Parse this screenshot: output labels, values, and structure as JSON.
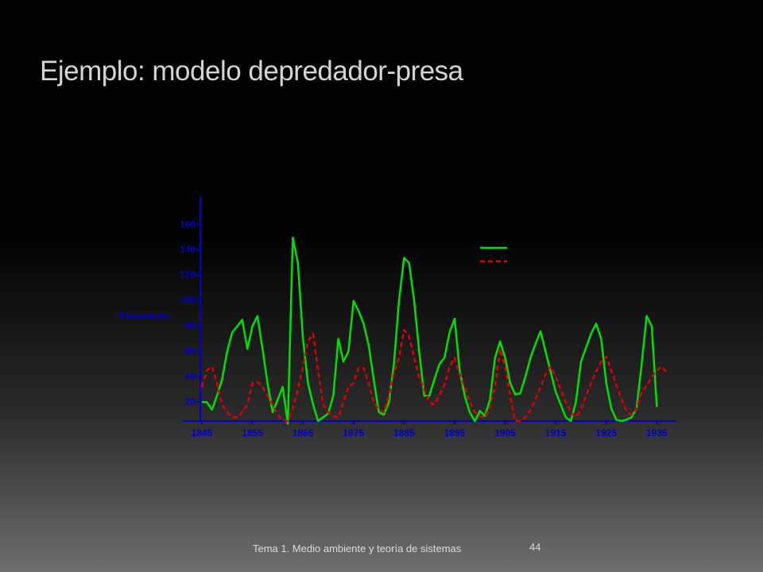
{
  "slide": {
    "title": "Ejemplo: modelo depredador-presa",
    "footer": "Tema 1. Medio ambiente y teoría de sistemas",
    "page_number": "44"
  },
  "chart_data": {
    "type": "line",
    "ylabel": "Thousands",
    "x": [
      1845,
      1846,
      1847,
      1848,
      1849,
      1850,
      1851,
      1852,
      1853,
      1854,
      1855,
      1856,
      1857,
      1858,
      1859,
      1860,
      1861,
      1862,
      1863,
      1864,
      1865,
      1866,
      1867,
      1868,
      1869,
      1870,
      1871,
      1872,
      1873,
      1874,
      1875,
      1876,
      1877,
      1878,
      1879,
      1880,
      1881,
      1882,
      1883,
      1884,
      1885,
      1886,
      1887,
      1888,
      1889,
      1890,
      1891,
      1892,
      1893,
      1894,
      1895,
      1896,
      1897,
      1898,
      1899,
      1900,
      1901,
      1902,
      1903,
      1904,
      1905,
      1906,
      1907,
      1908,
      1909,
      1910,
      1911,
      1912,
      1913,
      1914,
      1915,
      1916,
      1917,
      1918,
      1919,
      1920,
      1921,
      1922,
      1923,
      1924,
      1925,
      1926,
      1927,
      1928,
      1929,
      1930,
      1931,
      1932,
      1933,
      1934,
      1935,
      1936,
      1937
    ],
    "series": [
      {
        "color": "#00e000",
        "dashed": false,
        "values": [
          20,
          20,
          14,
          25,
          38,
          60,
          75,
          80,
          85,
          62,
          80,
          88,
          62,
          35,
          12,
          22,
          32,
          3,
          150,
          130,
          70,
          35,
          18,
          5,
          8,
          11,
          25,
          70,
          52,
          60,
          100,
          92,
          82,
          65,
          38,
          12,
          10,
          20,
          50,
          100,
          134,
          130,
          100,
          60,
          25,
          25,
          38,
          50,
          55,
          75,
          86,
          45,
          25,
          12,
          5,
          13,
          9,
          22,
          55,
          68,
          55,
          35,
          26,
          27,
          40,
          55,
          66,
          76,
          60,
          44,
          28,
          18,
          8,
          5,
          20,
          52,
          63,
          74,
          82,
          70,
          35,
          15,
          6,
          5,
          6,
          8,
          15,
          50,
          88,
          80,
          16,
          null,
          null
        ]
      },
      {
        "color": "#e00000",
        "dashed": true,
        "values": [
          32,
          45,
          48,
          35,
          18,
          12,
          8,
          8,
          12,
          18,
          35,
          36,
          32,
          25,
          18,
          10,
          6,
          5,
          15,
          30,
          48,
          68,
          74,
          45,
          18,
          12,
          9,
          8,
          20,
          32,
          35,
          47,
          47,
          35,
          20,
          14,
          12,
          25,
          42,
          55,
          77,
          72,
          55,
          40,
          30,
          20,
          18,
          25,
          34,
          48,
          55,
          42,
          32,
          20,
          12,
          9,
          8,
          16,
          32,
          62,
          48,
          25,
          5,
          5,
          8,
          14,
          22,
          32,
          42,
          48,
          40,
          30,
          20,
          12,
          8,
          14,
          25,
          35,
          44,
          52,
          56,
          45,
          33,
          23,
          13,
          10,
          15,
          28,
          33,
          40,
          45,
          48,
          43
        ]
      }
    ],
    "xlim": [
      1844,
      1939
    ],
    "xticks": [
      1845,
      1855,
      1865,
      1875,
      1885,
      1895,
      1905,
      1915,
      1925,
      1935
    ],
    "ylim": [
      0,
      180
    ],
    "yticks": [
      20,
      40,
      60,
      80,
      100,
      120,
      140,
      160
    ],
    "axis_color": "#0000c8",
    "legend": "top-right"
  }
}
